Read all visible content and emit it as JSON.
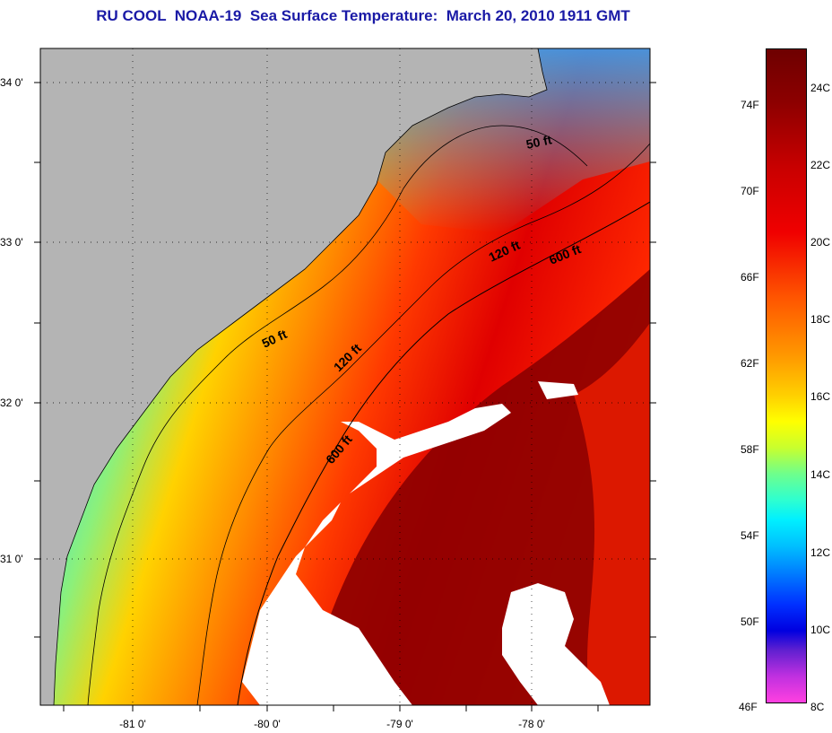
{
  "title": "RU COOL  NOAA-19  Sea Surface Temperature:  March 20, 2010 1911 GMT",
  "axes": {
    "lon_labels": [
      "-81 0'",
      "-80 0'",
      "-79 0'",
      "-78 0'"
    ],
    "lat_labels": [
      "34 0'",
      "33 0'",
      "32 0'",
      "31 0'"
    ]
  },
  "isobath_labels": {
    "a50_north": "50 ft",
    "a50_south": "50 ft",
    "a120_north": "120 ft",
    "a120_south": "120 ft",
    "a600_north": "600 ft",
    "a600_south": "600 ft"
  },
  "colorbar": {
    "fahrenheit": [
      "74F",
      "70F",
      "66F",
      "62F",
      "58F",
      "54F",
      "50F",
      "46F"
    ],
    "celsius": [
      "24C",
      "22C",
      "20C",
      "18C",
      "16C",
      "14C",
      "12C",
      "10C",
      "8C"
    ]
  },
  "colors": {
    "title": "#1a1aa6",
    "land": "#b4b4b4",
    "cloud": "#ffffff",
    "warm": "#8c0000",
    "cold": "#00c0ff"
  }
}
